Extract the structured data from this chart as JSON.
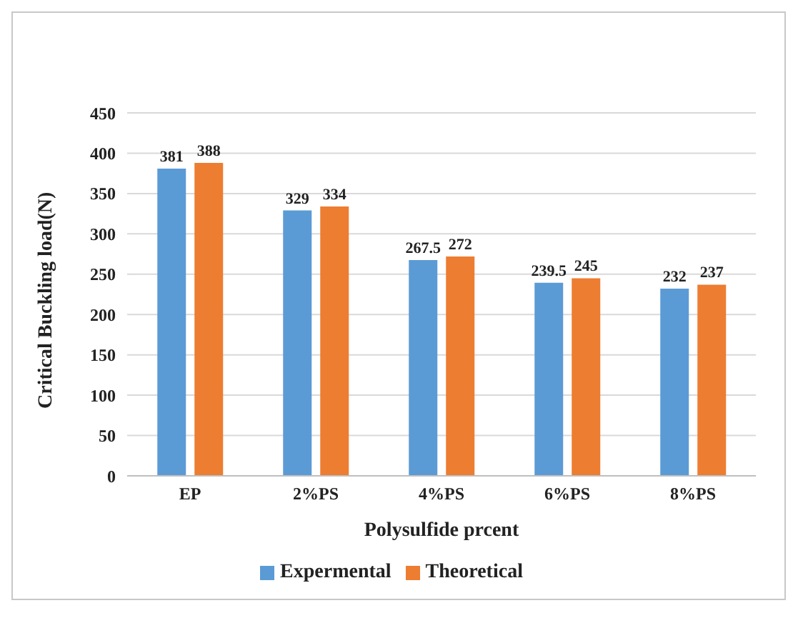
{
  "chart_data": {
    "type": "bar",
    "xlabel": "Polysulfide prcent",
    "ylabel": "Critical Buckling load(N)",
    "categories": [
      "EP",
      "2%PS",
      "4%PS",
      "6%PS",
      "8%PS"
    ],
    "series": [
      {
        "name": "Expermental",
        "color": "#5b9bd5",
        "values": [
          381,
          329,
          267.5,
          239.5,
          232
        ]
      },
      {
        "name": "Theoretical",
        "color": "#ed7d31",
        "values": [
          388,
          334,
          272,
          245,
          237
        ]
      }
    ],
    "ylim": [
      0,
      450
    ],
    "yticks": [
      0,
      50,
      100,
      150,
      200,
      250,
      300,
      350,
      400,
      450
    ],
    "grid": "y",
    "legend": "bottom",
    "data_labels": true
  }
}
